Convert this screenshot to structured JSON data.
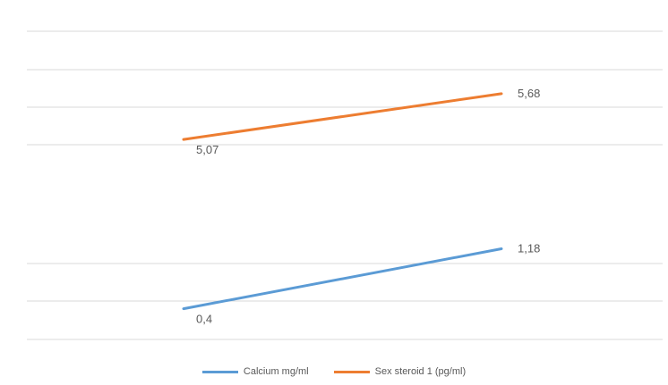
{
  "chart_data": {
    "type": "line",
    "categories": [
      "",
      ""
    ],
    "series": [
      {
        "name": "Calcium mg/ml",
        "values": [
          0.4,
          1.18
        ],
        "labels": [
          "0,4",
          "1,18"
        ],
        "color": "#5b9bd5"
      },
      {
        "name": "Sex steroid 1 (pg/ml)",
        "values": [
          5.07,
          5.68
        ],
        "labels": [
          "5,07",
          "5,68"
        ],
        "color": "#ed7d31"
      }
    ],
    "gridline_values": [
      0.0,
      0.5,
      5.0,
      5.5,
      6.0
    ],
    "ylim": [
      0.0,
      6.0
    ],
    "grid": true,
    "legend_position": "bottom",
    "title": "",
    "xlabel": "",
    "ylabel": ""
  }
}
